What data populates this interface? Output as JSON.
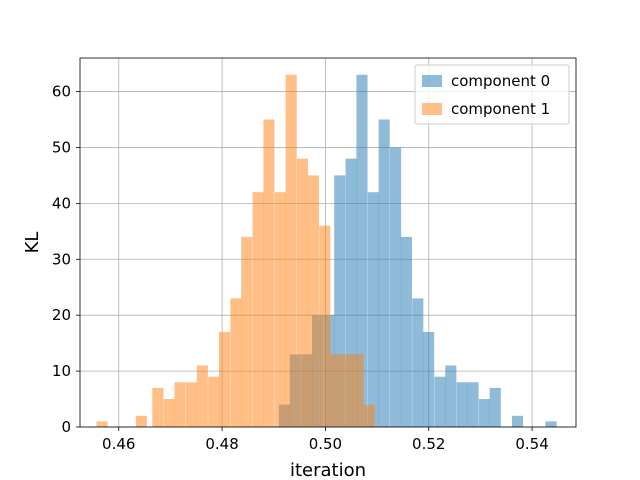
{
  "chart_data": {
    "type": "histogram",
    "title": "",
    "xlabel": "iteration",
    "ylabel": "KL",
    "xlim": [
      0.4525,
      0.5485
    ],
    "ylim": [
      0,
      66
    ],
    "x_ticks": [
      0.46,
      0.48,
      0.5,
      0.52,
      0.54
    ],
    "x_tick_labels": [
      "0.46",
      "0.48",
      "0.50",
      "0.52",
      "0.54"
    ],
    "y_ticks": [
      0,
      10,
      20,
      30,
      40,
      50,
      60
    ],
    "y_tick_labels": [
      "0",
      "10",
      "20",
      "30",
      "40",
      "50",
      "60"
    ],
    "grid": true,
    "legend_position": "upper right",
    "bin_width": 0.00215,
    "series": [
      {
        "name": "component 0",
        "color": "#1f77b4",
        "alpha": 0.5,
        "bins": [
          [
            0.491,
            4
          ],
          [
            0.4931,
            13
          ],
          [
            0.4953,
            13
          ],
          [
            0.4974,
            20
          ],
          [
            0.4996,
            20
          ],
          [
            0.5017,
            45
          ],
          [
            0.5039,
            48
          ],
          [
            0.506,
            63
          ],
          [
            0.5082,
            42
          ],
          [
            0.5103,
            55
          ],
          [
            0.5125,
            50
          ],
          [
            0.5146,
            34
          ],
          [
            0.5168,
            23
          ],
          [
            0.5189,
            17
          ],
          [
            0.5211,
            9
          ],
          [
            0.5232,
            11
          ],
          [
            0.5254,
            8
          ],
          [
            0.5275,
            8
          ],
          [
            0.5297,
            5
          ],
          [
            0.5318,
            7
          ],
          [
            0.5361,
            2
          ],
          [
            0.5426,
            1
          ]
        ]
      },
      {
        "name": "component 1",
        "color": "#ff7f0e",
        "alpha": 0.5,
        "bins": [
          [
            0.4557,
            1
          ],
          [
            0.4633,
            2
          ],
          [
            0.4665,
            7
          ],
          [
            0.4687,
            5
          ],
          [
            0.4708,
            8
          ],
          [
            0.473,
            8
          ],
          [
            0.4751,
            11
          ],
          [
            0.4773,
            9
          ],
          [
            0.4794,
            17
          ],
          [
            0.4816,
            23
          ],
          [
            0.4837,
            34
          ],
          [
            0.4859,
            42
          ],
          [
            0.488,
            55
          ],
          [
            0.4902,
            42
          ],
          [
            0.4923,
            63
          ],
          [
            0.4945,
            48
          ],
          [
            0.4966,
            45
          ],
          [
            0.4988,
            36
          ],
          [
            0.5009,
            13
          ],
          [
            0.5031,
            13
          ],
          [
            0.5052,
            13
          ],
          [
            0.5074,
            4
          ]
        ]
      }
    ]
  }
}
